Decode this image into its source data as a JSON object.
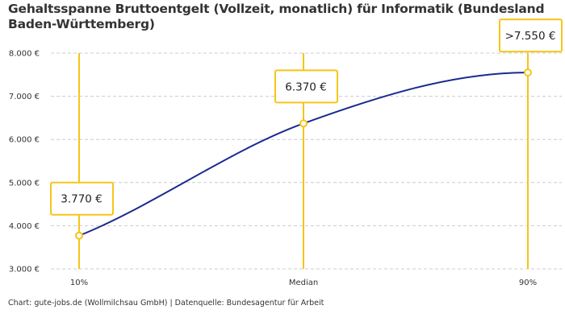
{
  "chart_data": {
    "type": "line",
    "title": "Gehaltsspanne Bruttoentgelt (Vollzeit, monatlich) für Informatik (Bundesland Baden-Württemberg)",
    "categories": [
      "10%",
      "Median",
      "90%"
    ],
    "values": [
      3770,
      6370,
      7550
    ],
    "data_labels": [
      "3.770 €",
      "6.370 €",
      ">7.550 €"
    ],
    "ylim": [
      3000,
      8000
    ],
    "yticks": [
      3000,
      4000,
      5000,
      6000,
      7000,
      8000
    ],
    "ytick_labels": [
      "3.000 €",
      "4.000 €",
      "5.000 €",
      "6.000 €",
      "7.000 €",
      "8.000 €"
    ],
    "grid": true,
    "colors": {
      "line": "#1a2a8f",
      "marker": "#f5c518",
      "grid": "#cccccc"
    }
  },
  "credit": "Chart: gute-jobs.de (Wollmilchsau GmbH) | Datenquelle: Bundesagentur für Arbeit"
}
